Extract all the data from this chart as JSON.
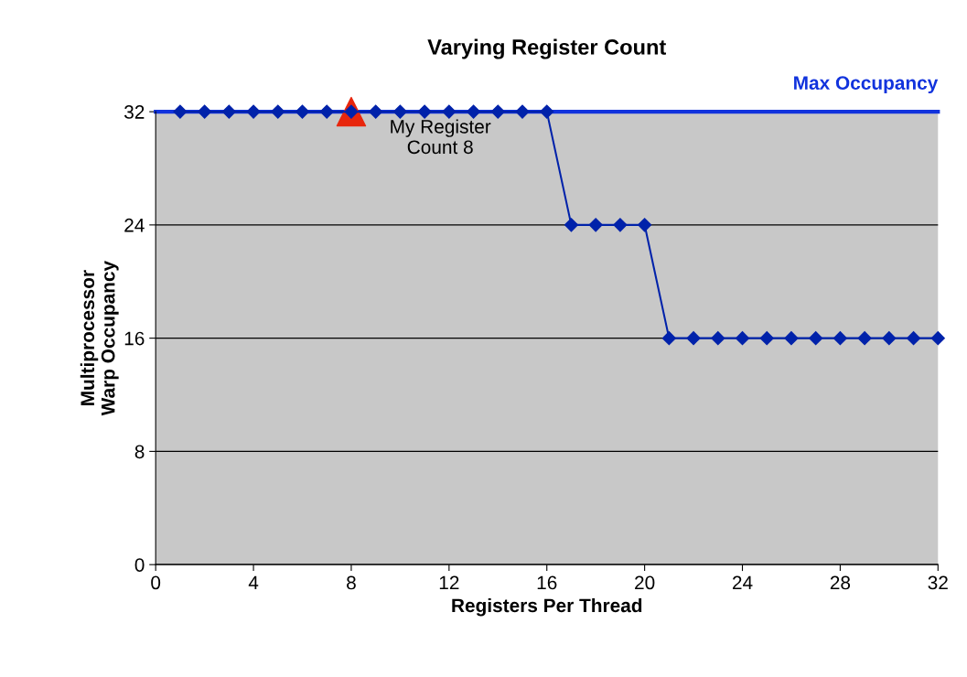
{
  "chart_data": {
    "type": "line",
    "title": "Varying Register Count",
    "xlabel": "Registers Per Thread",
    "ylabel": "Multiprocessor\nWarp Occupancy",
    "series": [
      {
        "color": "#0022aa",
        "marker": "diamond",
        "x": [
          1,
          2,
          3,
          4,
          5,
          6,
          7,
          8,
          9,
          10,
          11,
          12,
          13,
          14,
          15,
          16,
          17,
          18,
          19,
          20,
          21,
          22,
          23,
          24,
          25,
          26,
          27,
          28,
          29,
          30,
          31,
          32
        ],
        "values": [
          32,
          32,
          32,
          32,
          32,
          32,
          32,
          32,
          32,
          32,
          32,
          32,
          32,
          32,
          32,
          32,
          24,
          24,
          24,
          24,
          16,
          16,
          16,
          16,
          16,
          16,
          16,
          16,
          16,
          16,
          16,
          16
        ]
      },
      {
        "type": "scatter",
        "color": "#e8260c",
        "marker": "triangle",
        "x": [
          8
        ],
        "values": [
          32
        ]
      }
    ],
    "ref_lines": [
      {
        "axis": "y",
        "value": 32,
        "label": "Max Occupancy",
        "color": "#1133dd",
        "line_style": "solid"
      }
    ],
    "annotations": [
      {
        "text": "My Register\nCount 8",
        "x": 8,
        "y": 32
      }
    ],
    "xlim": [
      0,
      32
    ],
    "xticks": [
      0,
      4,
      8,
      12,
      16,
      20,
      24,
      28,
      32
    ],
    "ylim": [
      0,
      32
    ],
    "yticks": [
      0,
      8,
      16,
      24,
      32
    ],
    "grid": "y",
    "legend": false
  }
}
